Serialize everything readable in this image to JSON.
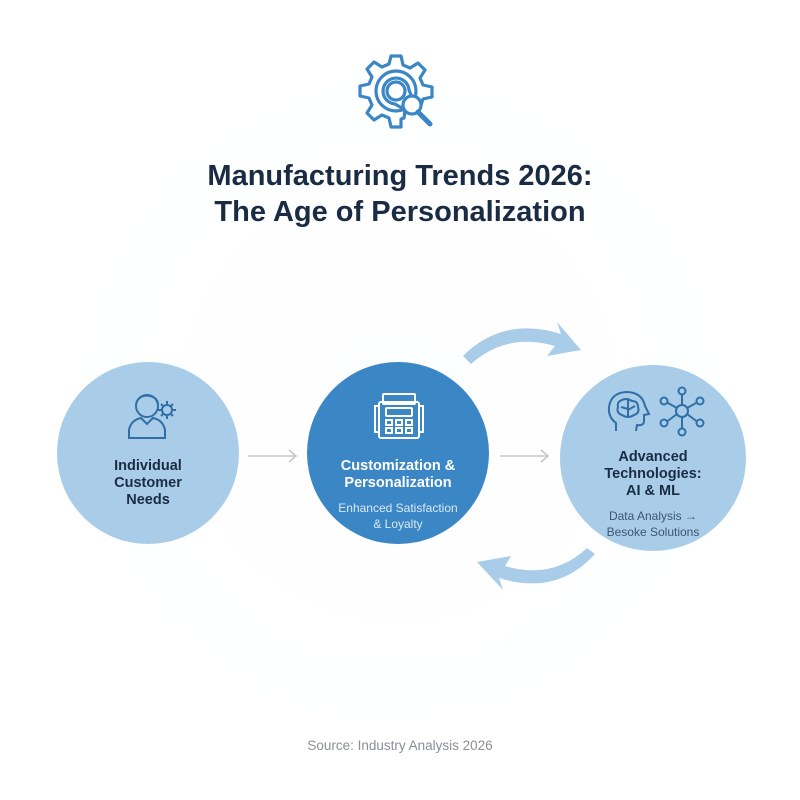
{
  "header": {
    "icon": "gear-magnifier-icon",
    "title_line1": "Manufacturing Trends 2026:",
    "title_line2": "The Age of Personalization"
  },
  "nodes": [
    {
      "icon": "person-gear-icon",
      "title": [
        "Individual",
        "Customer",
        "Needs"
      ]
    },
    {
      "icon": "configurator-machine-icon",
      "title": [
        "Customization &",
        "Personalization"
      ],
      "subtitle": [
        "Enhanced Satisfaction",
        "& Loyalty"
      ]
    },
    {
      "icons": [
        "brain-head-icon",
        "network-node-icon"
      ],
      "title": [
        "Advanced",
        "Technologies:",
        "AI & ML"
      ],
      "subtitle": [
        "Data Analysis →",
        "Besoke Solutions"
      ]
    }
  ],
  "connectors": [
    "arrow-right-icon",
    "arrow-right-icon",
    "curved-arrow-forward-icon",
    "curved-arrow-back-icon"
  ],
  "footer": {
    "source": "Source: Industry Analysis 2026"
  },
  "colors": {
    "title": "#1a2b44",
    "light_circle": "#a9cde9",
    "accent_circle": "#3b86c4",
    "icon_stroke": "#3b86c4",
    "curved_arrow": "#a9cde9",
    "thin_arrow": "#c4c8cc",
    "source_text": "#8a8f96"
  }
}
